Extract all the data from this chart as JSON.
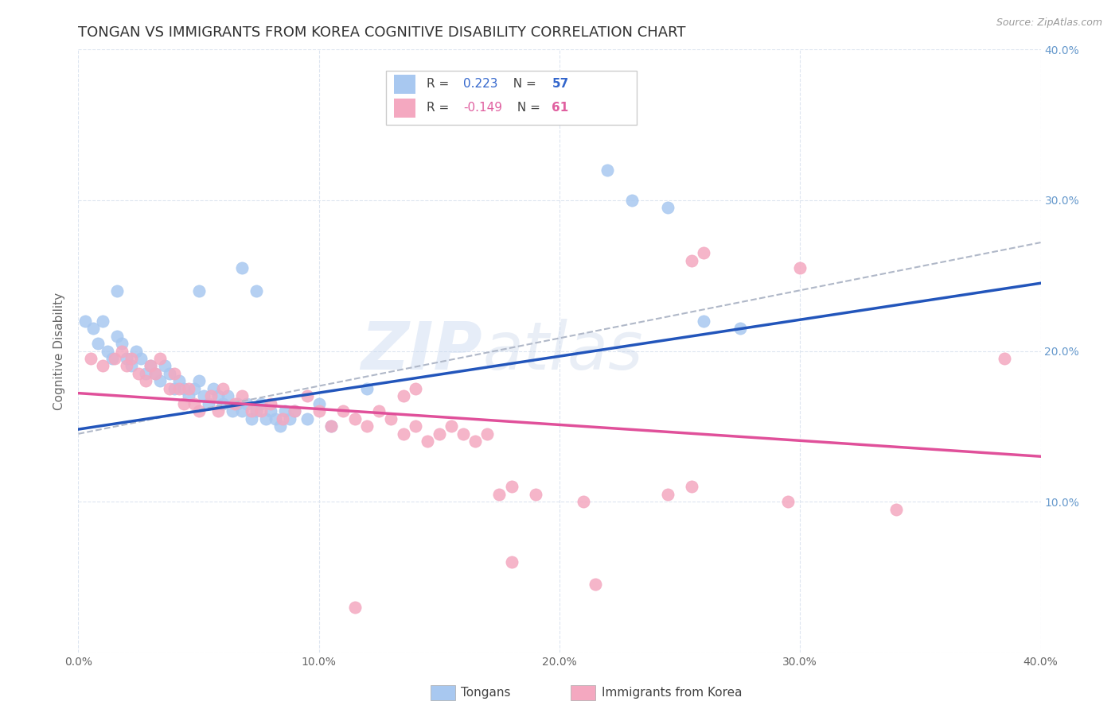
{
  "title": "TONGAN VS IMMIGRANTS FROM KOREA COGNITIVE DISABILITY CORRELATION CHART",
  "source": "Source: ZipAtlas.com",
  "ylabel": "Cognitive Disability",
  "xlim": [
    0.0,
    0.4
  ],
  "ylim": [
    0.0,
    0.4
  ],
  "legend_label_bottom": [
    "Tongans",
    "Immigrants from Korea"
  ],
  "blue_R": "0.223",
  "blue_N": "57",
  "pink_R": "-0.149",
  "pink_N": "61",
  "blue_color": "#a8c8f0",
  "pink_color": "#f4a8c0",
  "blue_line_color": "#2255bb",
  "pink_line_color": "#e0509a",
  "dashed_line_color": "#b0b8c8",
  "blue_scatter": [
    [
      0.003,
      0.22
    ],
    [
      0.006,
      0.215
    ],
    [
      0.008,
      0.205
    ],
    [
      0.01,
      0.22
    ],
    [
      0.012,
      0.2
    ],
    [
      0.014,
      0.195
    ],
    [
      0.016,
      0.21
    ],
    [
      0.018,
      0.205
    ],
    [
      0.02,
      0.195
    ],
    [
      0.022,
      0.19
    ],
    [
      0.024,
      0.2
    ],
    [
      0.026,
      0.195
    ],
    [
      0.028,
      0.185
    ],
    [
      0.03,
      0.19
    ],
    [
      0.032,
      0.185
    ],
    [
      0.034,
      0.18
    ],
    [
      0.036,
      0.19
    ],
    [
      0.038,
      0.185
    ],
    [
      0.04,
      0.175
    ],
    [
      0.042,
      0.18
    ],
    [
      0.044,
      0.175
    ],
    [
      0.046,
      0.17
    ],
    [
      0.048,
      0.175
    ],
    [
      0.05,
      0.18
    ],
    [
      0.052,
      0.17
    ],
    [
      0.054,
      0.165
    ],
    [
      0.056,
      0.175
    ],
    [
      0.058,
      0.17
    ],
    [
      0.06,
      0.165
    ],
    [
      0.062,
      0.17
    ],
    [
      0.064,
      0.16
    ],
    [
      0.066,
      0.165
    ],
    [
      0.068,
      0.16
    ],
    [
      0.07,
      0.165
    ],
    [
      0.072,
      0.155
    ],
    [
      0.074,
      0.16
    ],
    [
      0.076,
      0.165
    ],
    [
      0.078,
      0.155
    ],
    [
      0.08,
      0.16
    ],
    [
      0.082,
      0.155
    ],
    [
      0.084,
      0.15
    ],
    [
      0.086,
      0.16
    ],
    [
      0.088,
      0.155
    ],
    [
      0.09,
      0.16
    ],
    [
      0.095,
      0.155
    ],
    [
      0.1,
      0.165
    ],
    [
      0.105,
      0.15
    ],
    [
      0.016,
      0.24
    ],
    [
      0.05,
      0.24
    ],
    [
      0.068,
      0.255
    ],
    [
      0.074,
      0.24
    ],
    [
      0.22,
      0.32
    ],
    [
      0.23,
      0.3
    ],
    [
      0.245,
      0.295
    ],
    [
      0.26,
      0.22
    ],
    [
      0.275,
      0.215
    ],
    [
      0.12,
      0.175
    ]
  ],
  "pink_scatter": [
    [
      0.005,
      0.195
    ],
    [
      0.01,
      0.19
    ],
    [
      0.015,
      0.195
    ],
    [
      0.018,
      0.2
    ],
    [
      0.02,
      0.19
    ],
    [
      0.022,
      0.195
    ],
    [
      0.025,
      0.185
    ],
    [
      0.028,
      0.18
    ],
    [
      0.03,
      0.19
    ],
    [
      0.032,
      0.185
    ],
    [
      0.034,
      0.195
    ],
    [
      0.038,
      0.175
    ],
    [
      0.04,
      0.185
    ],
    [
      0.042,
      0.175
    ],
    [
      0.044,
      0.165
    ],
    [
      0.046,
      0.175
    ],
    [
      0.048,
      0.165
    ],
    [
      0.05,
      0.16
    ],
    [
      0.055,
      0.17
    ],
    [
      0.058,
      0.16
    ],
    [
      0.06,
      0.175
    ],
    [
      0.065,
      0.165
    ],
    [
      0.068,
      0.17
    ],
    [
      0.072,
      0.16
    ],
    [
      0.076,
      0.16
    ],
    [
      0.08,
      0.165
    ],
    [
      0.085,
      0.155
    ],
    [
      0.09,
      0.16
    ],
    [
      0.095,
      0.17
    ],
    [
      0.1,
      0.16
    ],
    [
      0.105,
      0.15
    ],
    [
      0.11,
      0.16
    ],
    [
      0.115,
      0.155
    ],
    [
      0.12,
      0.15
    ],
    [
      0.125,
      0.16
    ],
    [
      0.13,
      0.155
    ],
    [
      0.135,
      0.145
    ],
    [
      0.14,
      0.15
    ],
    [
      0.145,
      0.14
    ],
    [
      0.15,
      0.145
    ],
    [
      0.155,
      0.15
    ],
    [
      0.16,
      0.145
    ],
    [
      0.165,
      0.14
    ],
    [
      0.17,
      0.145
    ],
    [
      0.135,
      0.17
    ],
    [
      0.14,
      0.175
    ],
    [
      0.175,
      0.105
    ],
    [
      0.18,
      0.11
    ],
    [
      0.19,
      0.105
    ],
    [
      0.21,
      0.1
    ],
    [
      0.245,
      0.105
    ],
    [
      0.255,
      0.11
    ],
    [
      0.295,
      0.1
    ],
    [
      0.255,
      0.26
    ],
    [
      0.26,
      0.265
    ],
    [
      0.3,
      0.255
    ],
    [
      0.34,
      0.095
    ],
    [
      0.385,
      0.195
    ],
    [
      0.115,
      0.03
    ],
    [
      0.18,
      0.06
    ],
    [
      0.215,
      0.045
    ]
  ],
  "blue_trend": [
    0.0,
    0.148,
    0.4,
    0.245
  ],
  "pink_trend": [
    0.0,
    0.172,
    0.4,
    0.13
  ],
  "dashed_trend": [
    0.0,
    0.145,
    0.4,
    0.272
  ],
  "watermark": "ZIPatlas",
  "background_color": "#ffffff",
  "grid_color": "#dde5f0",
  "title_fontsize": 13,
  "axis_fontsize": 11,
  "tick_fontsize": 10,
  "right_tick_color": "#6699cc"
}
